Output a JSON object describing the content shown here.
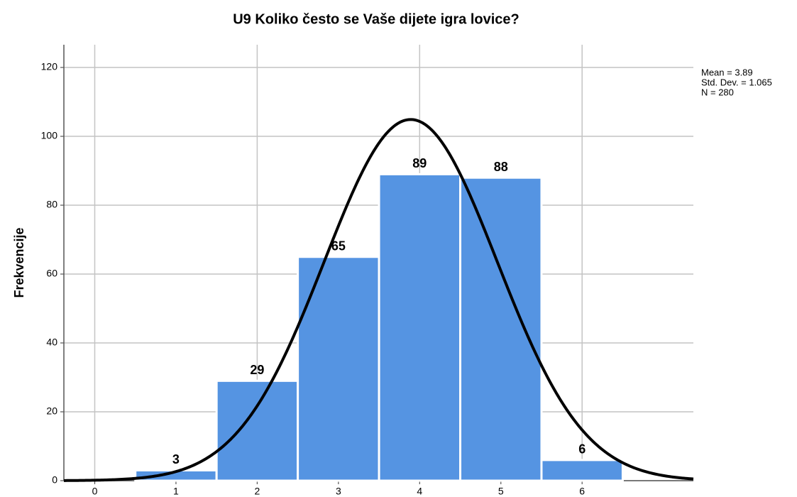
{
  "chart_data": {
    "type": "histogram",
    "title": "U9 Koliko često se Vaše dijete igra lovice?",
    "y_label": "Frekvencije",
    "bins": [
      0.5,
      1.5,
      2.5,
      3.5,
      4.5,
      5.5,
      6.5
    ],
    "values": [
      3,
      29,
      65,
      89,
      88,
      6
    ],
    "color": "#5594e2",
    "xlim": [
      -0.38,
      7.37
    ],
    "xticks": [
      0,
      1,
      2,
      3,
      4,
      5,
      6
    ],
    "ylim": [
      0,
      126.6
    ],
    "yticks": [
      0,
      20,
      40,
      60,
      80,
      100,
      120
    ],
    "grid": true,
    "normal_curve": true,
    "stats": [
      {
        "label": "Mean = 3.89",
        "value": 3.89
      },
      {
        "label": "Std. Dev. = 1.065",
        "value": 1.065
      },
      {
        "label": "N = 280",
        "value": 280
      }
    ]
  }
}
